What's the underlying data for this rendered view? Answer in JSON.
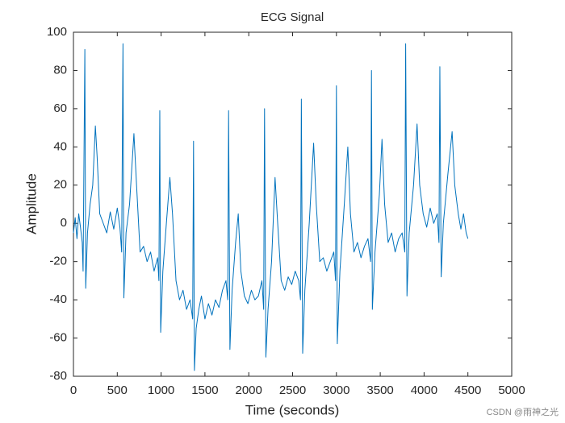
{
  "chart_data": {
    "type": "line",
    "title": "ECG Signal",
    "xlabel": "Time (seconds)",
    "ylabel": "Amplitude",
    "watermark": "CSDN @雨神之光",
    "xlim": [
      0,
      5000
    ],
    "xticks": [
      0,
      500,
      1000,
      1500,
      2000,
      2500,
      3000,
      3500,
      4000,
      4500,
      5000
    ],
    "ylim": [
      -80,
      100
    ],
    "yticks": [
      -80,
      -60,
      -40,
      -20,
      0,
      20,
      40,
      60,
      80,
      100
    ],
    "series": [
      {
        "color": "#0072bd",
        "x": [
          0,
          20,
          40,
          60,
          80,
          100,
          110,
          130,
          140,
          160,
          190,
          220,
          250,
          270,
          300,
          340,
          380,
          420,
          460,
          500,
          530,
          550,
          565,
          575,
          600,
          640,
          690,
          720,
          760,
          800,
          840,
          880,
          920,
          960,
          975,
          985,
          995,
          1020,
          1060,
          1100,
          1130,
          1170,
          1210,
          1250,
          1290,
          1330,
          1360,
          1370,
          1380,
          1400,
          1430,
          1460,
          1500,
          1540,
          1580,
          1620,
          1660,
          1700,
          1740,
          1760,
          1770,
          1785,
          1810,
          1850,
          1880,
          1910,
          1950,
          1990,
          2030,
          2070,
          2110,
          2150,
          2170,
          2180,
          2195,
          2220,
          2260,
          2300,
          2330,
          2370,
          2410,
          2450,
          2490,
          2530,
          2570,
          2590,
          2600,
          2615,
          2640,
          2690,
          2740,
          2770,
          2810,
          2850,
          2890,
          2930,
          2970,
          2990,
          3000,
          3010,
          3040,
          3090,
          3130,
          3160,
          3200,
          3240,
          3280,
          3320,
          3360,
          3390,
          3400,
          3410,
          3440,
          3490,
          3520,
          3550,
          3590,
          3630,
          3670,
          3710,
          3750,
          3780,
          3790,
          3805,
          3830,
          3880,
          3920,
          3950,
          3990,
          4030,
          4070,
          4110,
          4150,
          4170,
          4180,
          4195,
          4220,
          4270,
          4320,
          4350,
          4390,
          4420,
          4450,
          4480,
          4500
        ],
        "values": [
          -5,
          3,
          -8,
          5,
          -2,
          -10,
          -25,
          91,
          -34,
          -5,
          10,
          20,
          51,
          35,
          5,
          0,
          -5,
          6,
          -3,
          8,
          -2,
          -15,
          94,
          -39,
          -5,
          10,
          47,
          20,
          -15,
          -12,
          -20,
          -15,
          -25,
          -18,
          -30,
          59,
          -57,
          -25,
          0,
          24,
          5,
          -30,
          -40,
          -35,
          -45,
          -40,
          -50,
          43,
          -77,
          -55,
          -45,
          -38,
          -50,
          -42,
          -48,
          -40,
          -44,
          -35,
          -30,
          -40,
          59,
          -66,
          -35,
          -10,
          5,
          -25,
          -38,
          -42,
          -35,
          -40,
          -38,
          -30,
          -45,
          60,
          -70,
          -45,
          -20,
          24,
          0,
          -30,
          -35,
          -28,
          -32,
          -25,
          -30,
          -40,
          65,
          -68,
          -35,
          0,
          42,
          10,
          -20,
          -18,
          -25,
          -20,
          -15,
          -30,
          72,
          -63,
          -25,
          10,
          40,
          5,
          -15,
          -10,
          -18,
          -12,
          -8,
          -20,
          80,
          -45,
          -15,
          15,
          44,
          10,
          -10,
          -5,
          -15,
          -8,
          -5,
          -15,
          94,
          -38,
          -5,
          20,
          52,
          20,
          5,
          -2,
          8,
          0,
          5,
          -10,
          82,
          -28,
          0,
          25,
          48,
          20,
          5,
          -3,
          5,
          -5,
          -8
        ]
      }
    ]
  }
}
